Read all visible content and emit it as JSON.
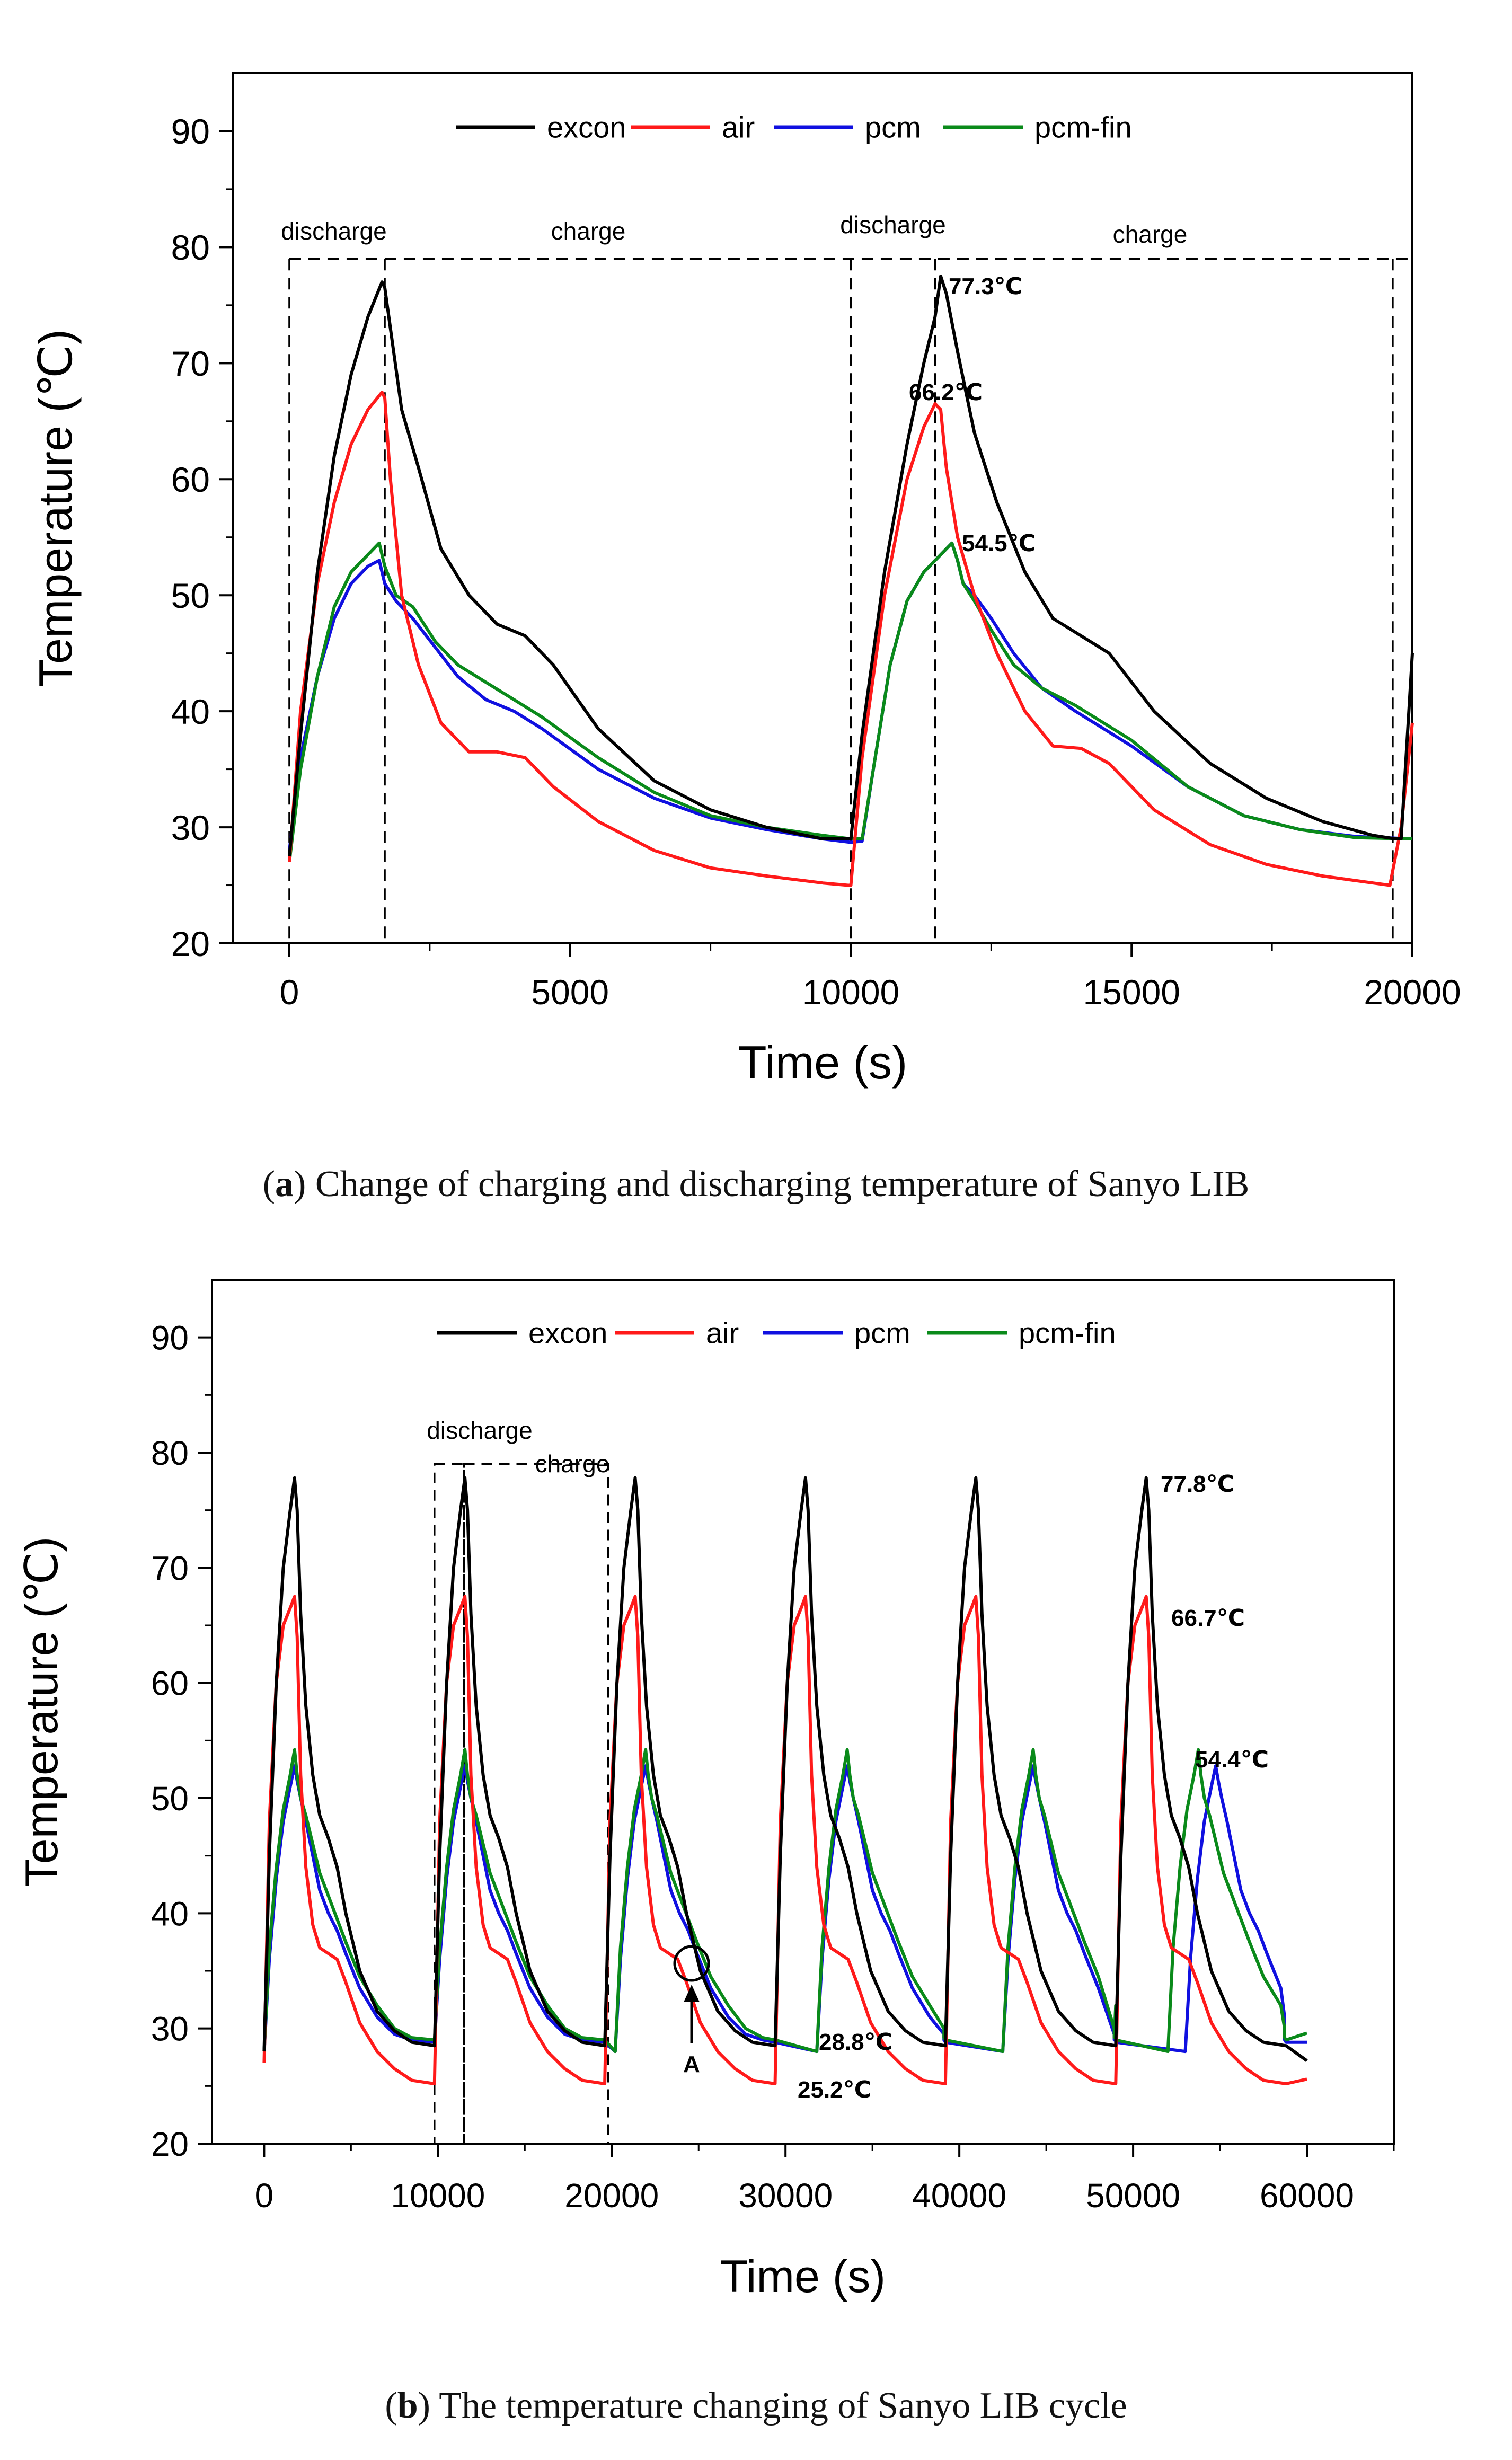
{
  "figure": {
    "caption_a_letter": "a",
    "caption_a_text": "Change of charging and discharging temperature of Sanyo LIB",
    "caption_b_letter": "b",
    "caption_b_text": "The temperature changing of Sanyo LIB cycle"
  },
  "colors": {
    "excon": "#000000",
    "air": "#ff1a1a",
    "pcm": "#1010e0",
    "pcm-fin": "#0a8a1a"
  },
  "chart_data": [
    {
      "type": "line",
      "title": "",
      "xlabel": "Time (s)",
      "ylabel": "Temperature (℃)",
      "xlim": [
        -1000,
        20000
      ],
      "ylim": [
        20,
        95
      ],
      "xticks": [
        0,
        5000,
        10000,
        15000,
        20000
      ],
      "xtick_labels": [
        "0",
        "5000",
        "10000",
        "15000",
        "20000"
      ],
      "yticks": [
        20,
        30,
        40,
        50,
        60,
        70,
        80,
        90
      ],
      "ytick_labels": [
        "20",
        "30",
        "40",
        "50",
        "60",
        "70",
        "80",
        "90"
      ],
      "legend": [
        "excon",
        "air",
        "pcm",
        "pcm-fin"
      ],
      "legend_position": "top",
      "grid": false,
      "series": [
        {
          "name": "excon",
          "x": [
            0,
            200,
            500,
            800,
            1100,
            1400,
            1650,
            1700,
            1800,
            2000,
            2300,
            2700,
            3200,
            3700,
            4200,
            4700,
            5500,
            6500,
            7500,
            8500,
            9500,
            9950,
            10000,
            10200,
            10600,
            11000,
            11300,
            11500,
            11600,
            11700,
            11900,
            12200,
            12600,
            13100,
            13600,
            14100,
            14600,
            15400,
            16400,
            17400,
            18400,
            19300,
            19700,
            19800,
            20000
          ],
          "y": [
            27.5,
            38,
            52,
            62,
            69,
            74,
            77,
            76.5,
            73,
            66,
            61,
            54,
            50,
            47.5,
            46.5,
            44,
            38.5,
            34,
            31.5,
            30,
            29,
            29,
            29,
            38,
            52,
            63,
            70,
            74,
            77.5,
            76,
            71,
            64,
            58,
            52,
            48,
            46.5,
            45,
            40,
            35.5,
            32.5,
            30.5,
            29.3,
            29,
            29,
            45
          ]
        },
        {
          "name": "air",
          "x": [
            0,
            200,
            500,
            800,
            1100,
            1400,
            1650,
            1700,
            1800,
            2000,
            2300,
            2700,
            3200,
            3700,
            4200,
            4700,
            5500,
            6500,
            7500,
            8500,
            9500,
            9950,
            10000,
            10200,
            10600,
            11000,
            11300,
            11500,
            11600,
            11700,
            11900,
            12200,
            12600,
            13100,
            13600,
            14100,
            14600,
            15400,
            16400,
            17400,
            18400,
            19300,
            19600,
            19800,
            20000
          ],
          "y": [
            27,
            40,
            51,
            58,
            63,
            66,
            67.5,
            67,
            60,
            50,
            44,
            39,
            36.5,
            36.5,
            36,
            33.5,
            30.5,
            28,
            26.5,
            25.8,
            25.2,
            25,
            25,
            36,
            50,
            60,
            64.5,
            66.5,
            66,
            61,
            55,
            50,
            45,
            40,
            37,
            36.8,
            35.5,
            31.5,
            28.5,
            26.8,
            25.8,
            25.2,
            25,
            30,
            39
          ]
        },
        {
          "name": "pcm",
          "x": [
            0,
            200,
            500,
            800,
            1100,
            1400,
            1600,
            1700,
            1900,
            2200,
            2600,
            3000,
            3500,
            4000,
            4500,
            5500,
            6500,
            7500,
            8500,
            9500,
            10000,
            10200,
            10400,
            10700,
            11000,
            11300,
            11600,
            11800,
            11900,
            12000,
            12200,
            12500,
            12900,
            13400,
            14000,
            15000,
            16000,
            17000,
            18000,
            19000,
            20000
          ],
          "y": [
            28,
            36,
            43,
            48,
            51,
            52.5,
            53,
            51,
            49.5,
            48,
            45.5,
            43,
            41,
            40,
            38.5,
            35,
            32.5,
            30.8,
            29.8,
            29,
            28.7,
            28.8,
            35,
            44,
            49.5,
            52,
            53.5,
            54.5,
            53,
            51,
            50,
            48,
            45,
            42,
            40,
            37,
            33.5,
            31,
            29.8,
            29.2,
            29
          ]
        },
        {
          "name": "pcm-fin",
          "x": [
            0,
            200,
            500,
            800,
            1100,
            1400,
            1600,
            1700,
            1900,
            2200,
            2600,
            3000,
            3500,
            4000,
            4500,
            5500,
            6500,
            7500,
            8500,
            9500,
            10000,
            10200,
            10400,
            10700,
            11000,
            11300,
            11600,
            11800,
            11900,
            12000,
            12200,
            12500,
            12900,
            13400,
            14000,
            15000,
            16000,
            17000,
            18000,
            19000,
            20000
          ],
          "y": [
            27,
            35,
            43,
            49,
            52,
            53.5,
            54.5,
            52.5,
            50,
            49,
            46,
            44,
            42.5,
            41,
            39.5,
            36,
            33,
            31,
            30,
            29.3,
            29,
            29,
            35,
            44,
            49.5,
            52,
            53.5,
            54.5,
            53,
            51,
            49.5,
            47,
            44,
            42,
            40.5,
            37.5,
            33.5,
            31,
            29.8,
            29.1,
            29
          ]
        }
      ],
      "annotations": {
        "discharge_1": "discharge",
        "charge_1": "charge",
        "discharge_2": "discharge",
        "charge_2": "charge",
        "peak_excon": "77.3℃",
        "peak_air": "66.2℃",
        "peak_pcm": "54.5℃"
      },
      "reference_lines": {
        "y": 79,
        "x": [
          0,
          1700,
          10000,
          11500,
          19650
        ]
      }
    },
    {
      "type": "line",
      "title": "",
      "xlabel": "Time (s)",
      "ylabel": "Temperature (℃)",
      "xlim": [
        -3000,
        65000
      ],
      "ylim": [
        20,
        95
      ],
      "xticks": [
        0,
        10000,
        20000,
        30000,
        40000,
        50000,
        60000
      ],
      "xtick_labels": [
        "0",
        "10000",
        "20000",
        "30000",
        "40000",
        "50000",
        "60000"
      ],
      "yticks": [
        20,
        30,
        40,
        50,
        60,
        70,
        80,
        90
      ],
      "ytick_labels": [
        "20",
        "30",
        "40",
        "50",
        "60",
        "70",
        "80",
        "90"
      ],
      "legend": [
        "excon",
        "air",
        "pcm",
        "pcm-fin"
      ],
      "legend_position": "top",
      "grid": false,
      "cycle_period": 9800,
      "cycle_starts": [
        0,
        9800,
        19600,
        29400,
        39200,
        49000
      ],
      "cycle_profiles": {
        "offsets": [
          0,
          300,
          700,
          1100,
          1500,
          1750,
          1900,
          2100,
          2400,
          2800,
          3200,
          3700,
          4200,
          4700,
          5500,
          6500,
          7500,
          8500,
          9800
        ],
        "excon": [
          28,
          45,
          60,
          70,
          75,
          77.8,
          75,
          66,
          58,
          52,
          48.5,
          46.5,
          44,
          40,
          35,
          31.5,
          29.8,
          28.8,
          28.5
        ],
        "air": [
          27,
          48,
          60,
          65,
          66.5,
          67.5,
          64,
          52,
          44,
          39,
          37,
          36.5,
          36,
          34,
          30.5,
          28,
          26.5,
          25.5,
          25.2
        ],
        "pcm": [
          28,
          36,
          43,
          48,
          51,
          52.8,
          51.5,
          50,
          48,
          45,
          42,
          40,
          38.5,
          36.5,
          33.5,
          31,
          29.5,
          29,
          28.8
        ],
        "pcm-fin": [
          28,
          37,
          44,
          49,
          52,
          54.2,
          52,
          50,
          48.5,
          46,
          43.5,
          41.5,
          39.5,
          37.5,
          34.5,
          32,
          30,
          29.2,
          29
        ]
      },
      "series_delays": {
        "pcm": [
          0,
          0,
          600,
          2400,
          3300,
          4000
        ],
        "pcm-fin": [
          0,
          0,
          600,
          2400,
          3300,
          3000
        ]
      },
      "series_end": {
        "excon": 27.2,
        "air": 25.6,
        "pcm": 28.8,
        "pcm-fin": 29.6
      },
      "annotations": {
        "discharge": "discharge",
        "charge": "charge",
        "peak_excon": "77.8℃",
        "peak_air": "66.7℃",
        "peak_pcm": "54.4℃",
        "min_pcm": "28.8℃",
        "min_air": "25.2℃",
        "marker_a": "A"
      }
    }
  ]
}
